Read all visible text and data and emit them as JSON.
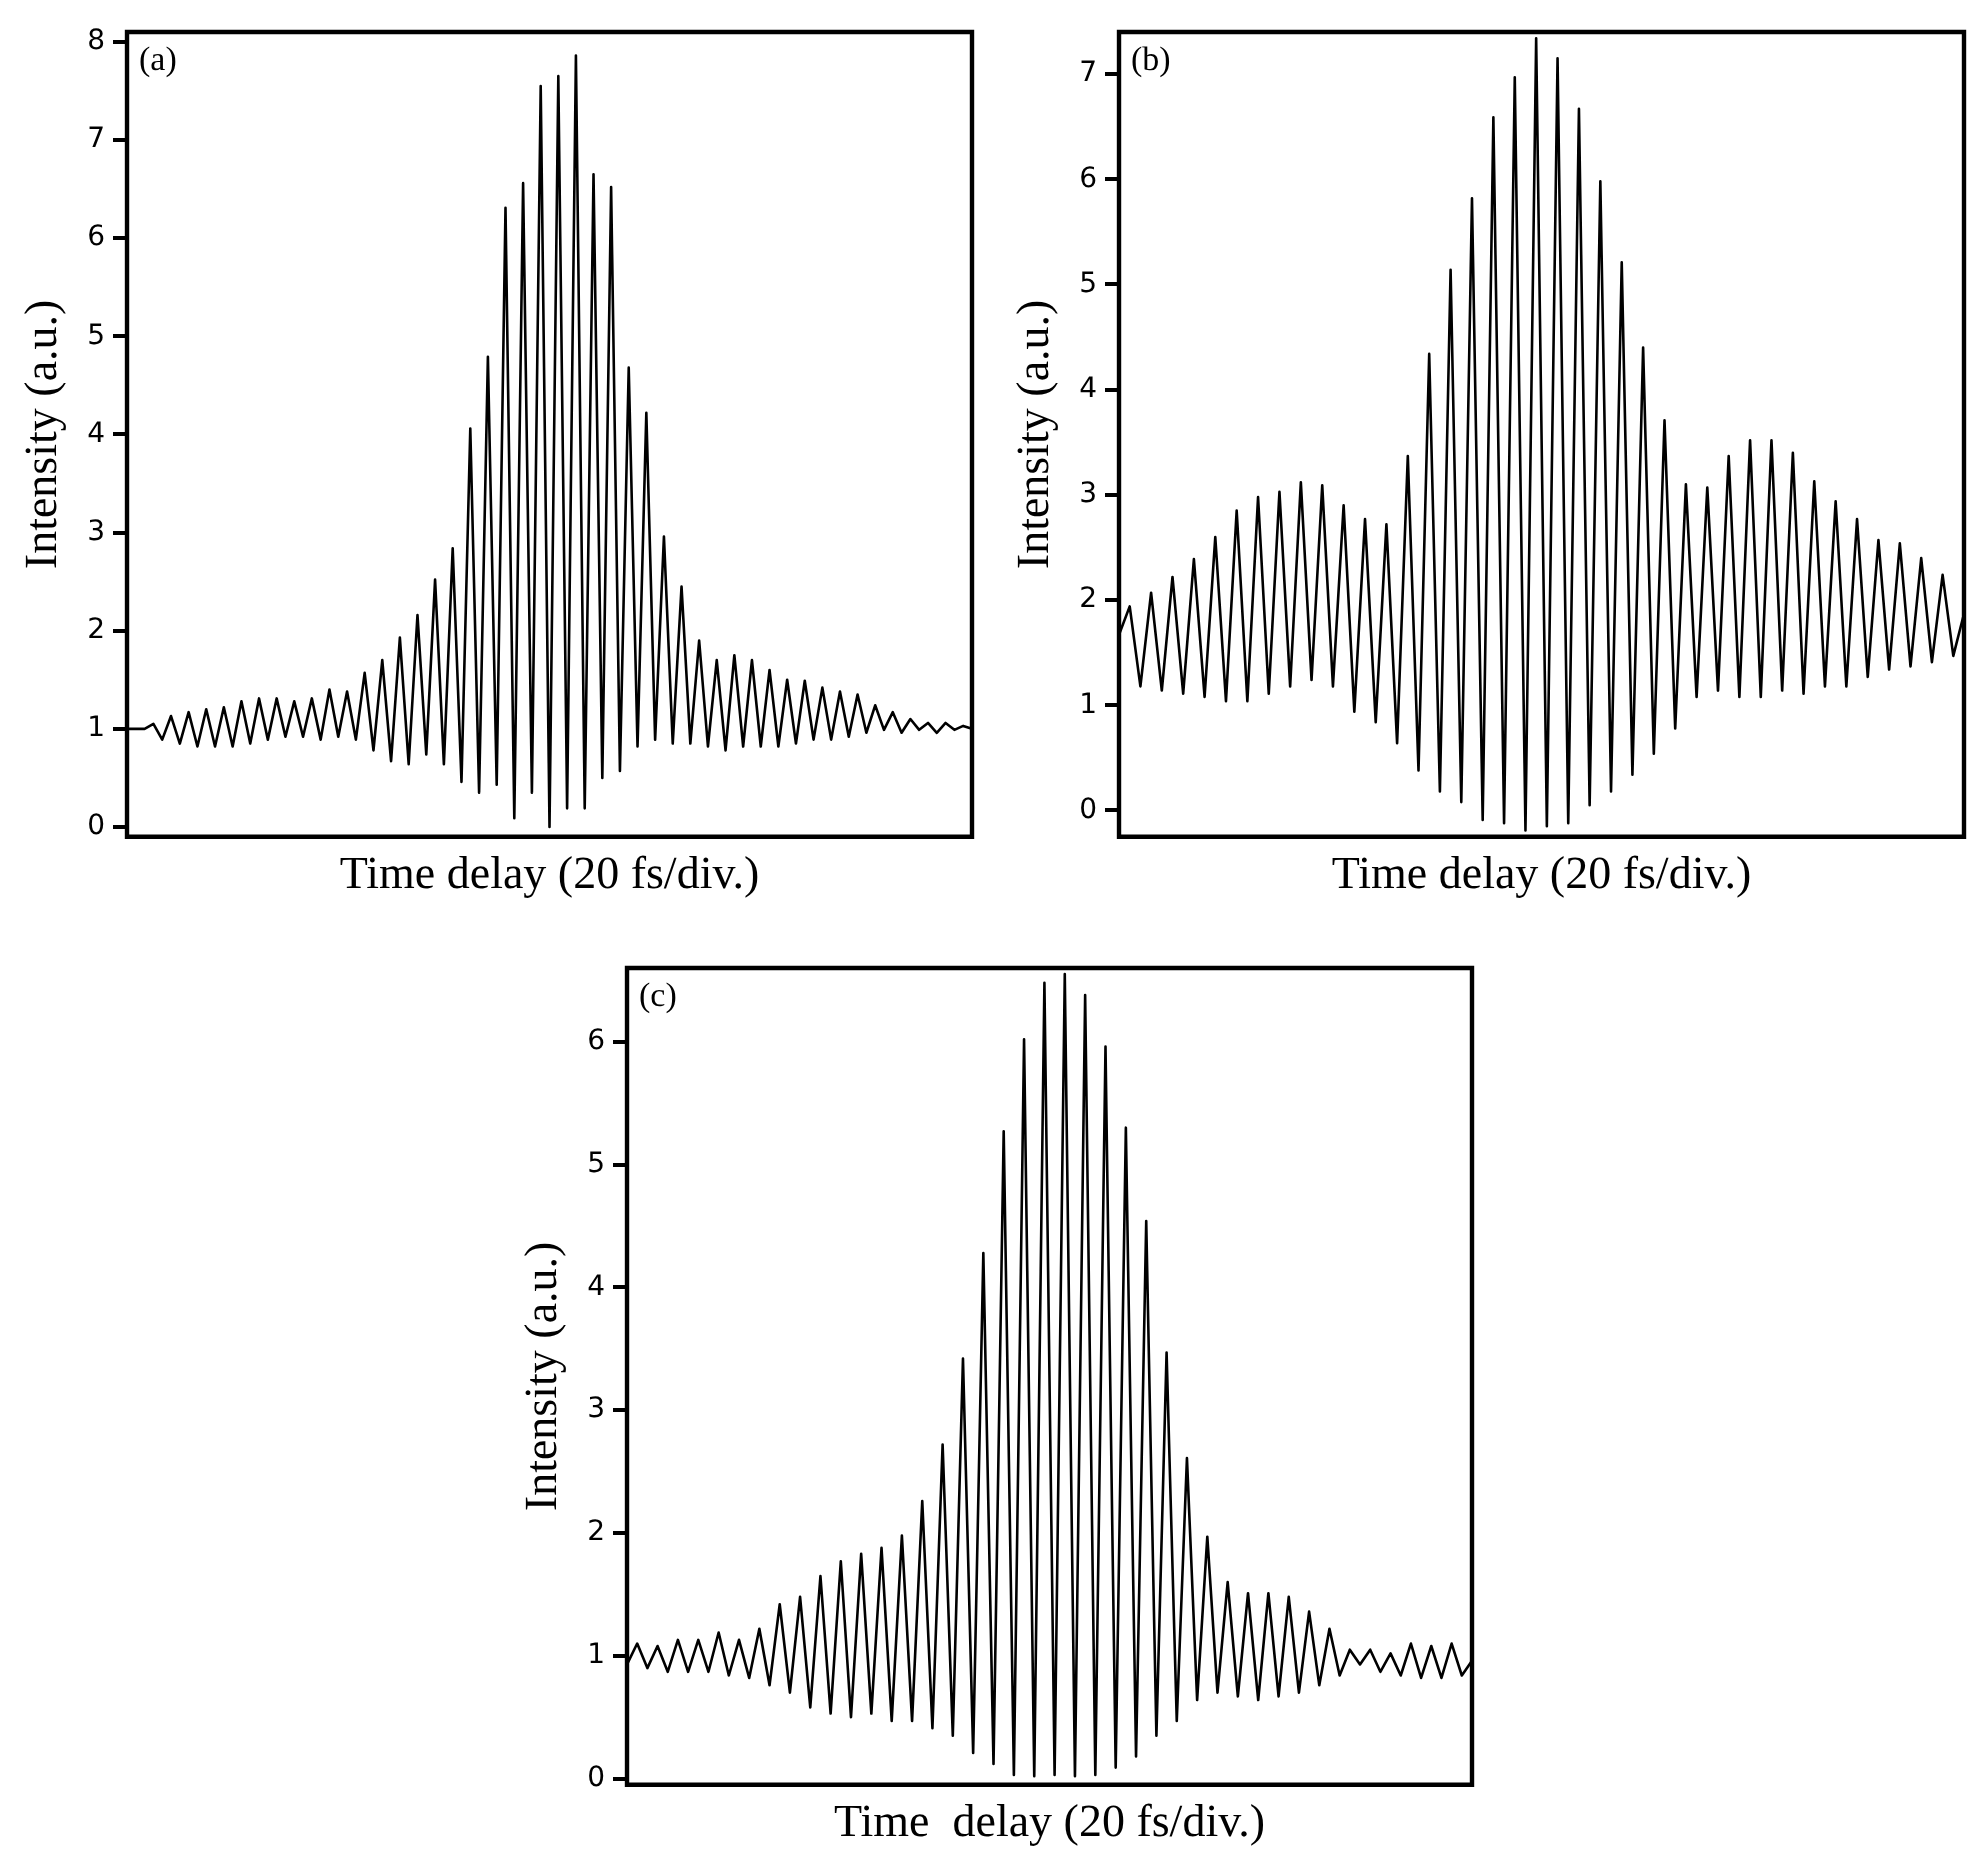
{
  "chart_data": [
    {
      "type": "line",
      "xlabel": "Time delay (20 fs/div.)",
      "ylabel": "Intensity (a.u.)",
      "annotations": [
        "(a)"
      ],
      "categories": [
        null,
        null,
        null,
        null,
        null,
        null,
        null,
        null,
        null,
        null,
        null,
        null,
        null,
        null,
        null,
        null,
        null,
        null,
        null,
        null,
        null,
        null,
        null,
        null,
        null,
        null,
        null,
        null,
        null,
        null,
        null,
        null,
        null,
        null,
        null,
        null,
        null,
        null,
        null,
        null,
        null,
        null,
        null,
        null,
        null,
        null,
        null,
        null,
        null,
        null,
        null,
        null,
        null,
        null,
        null,
        null,
        null,
        null,
        null,
        null,
        null,
        null,
        null,
        null,
        null,
        null,
        null,
        null,
        null,
        null,
        null,
        null,
        null,
        null,
        null,
        null,
        null,
        null,
        null,
        null,
        null,
        null,
        null,
        null,
        null,
        null,
        null,
        null,
        null,
        null,
        null,
        null,
        null,
        null,
        null,
        null,
        null
      ],
      "ylim": [
        -0.1,
        8.1
      ],
      "yticks": [
        0,
        1,
        2,
        3,
        4,
        5,
        6,
        7,
        8
      ],
      "tick_labels": "y",
      "grid": false,
      "legend": false,
      "marker": "none",
      "line_style": "solid",
      "series": [
        {
          "color": "#000000",
          "values": [
            1.0,
            1.0,
            1.0,
            1.05,
            0.89,
            1.13,
            0.85,
            1.17,
            0.82,
            1.2,
            0.82,
            1.22,
            0.82,
            1.28,
            0.85,
            1.31,
            0.89,
            1.31,
            0.92,
            1.28,
            0.92,
            1.31,
            0.89,
            1.4,
            0.92,
            1.38,
            0.89,
            1.57,
            0.78,
            1.7,
            0.67,
            1.93,
            0.64,
            2.16,
            0.74,
            2.52,
            0.64,
            2.84,
            0.46,
            4.06,
            0.35,
            4.79,
            0.43,
            6.31,
            0.09,
            6.56,
            0.35,
            7.55,
            0.0,
            7.65,
            0.19,
            7.86,
            0.19,
            6.65,
            0.5,
            6.52,
            0.57,
            4.68,
            0.82,
            4.22,
            0.89,
            2.96,
            0.85,
            2.45,
            0.85,
            1.9,
            0.82,
            1.7,
            0.78,
            1.75,
            0.82,
            1.7,
            0.82,
            1.6,
            0.82,
            1.5,
            0.85,
            1.49,
            0.89,
            1.42,
            0.89,
            1.38,
            0.92,
            1.35,
            0.96,
            1.24,
            0.99,
            1.17,
            0.96,
            1.1,
            0.99,
            1.06,
            0.96,
            1.06,
            0.99,
            1.03,
            1.0
          ]
        }
      ]
    },
    {
      "type": "line",
      "xlabel": "Time delay (20 fs/div.)",
      "ylabel": "Intensity (a.u.)",
      "annotations": [
        "(b)"
      ],
      "categories": [
        null,
        null,
        null,
        null,
        null,
        null,
        null,
        null,
        null,
        null,
        null,
        null,
        null,
        null,
        null,
        null,
        null,
        null,
        null,
        null,
        null,
        null,
        null,
        null,
        null,
        null,
        null,
        null,
        null,
        null,
        null,
        null,
        null,
        null,
        null,
        null,
        null,
        null,
        null,
        null,
        null,
        null,
        null,
        null,
        null,
        null,
        null,
        null,
        null,
        null,
        null,
        null,
        null,
        null,
        null,
        null,
        null,
        null,
        null,
        null,
        null,
        null,
        null,
        null,
        null,
        null,
        null,
        null,
        null,
        null,
        null,
        null,
        null,
        null,
        null,
        null,
        null,
        null,
        null,
        null
      ],
      "ylim": [
        -0.25,
        7.4
      ],
      "yticks": [
        0,
        1,
        2,
        3,
        4,
        5,
        6,
        7
      ],
      "tick_labels": "y",
      "grid": false,
      "legend": false,
      "marker": "none",
      "line_style": "solid",
      "series": [
        {
          "color": "#000000",
          "values": [
            1.67,
            1.94,
            1.18,
            2.07,
            1.14,
            2.22,
            1.11,
            2.39,
            1.08,
            2.6,
            1.04,
            2.85,
            1.04,
            2.98,
            1.11,
            3.03,
            1.18,
            3.12,
            1.24,
            3.09,
            1.18,
            2.9,
            0.94,
            2.77,
            0.84,
            2.72,
            0.64,
            3.37,
            0.38,
            4.34,
            0.18,
            5.14,
            0.08,
            5.82,
            -0.09,
            6.59,
            -0.12,
            6.97,
            -0.19,
            7.34,
            -0.15,
            7.15,
            -0.12,
            6.67,
            0.05,
            5.98,
            0.18,
            5.21,
            0.34,
            4.4,
            0.54,
            3.71,
            0.78,
            3.1,
            1.08,
            3.07,
            1.14,
            3.37,
            1.08,
            3.52,
            1.08,
            3.52,
            1.14,
            3.4,
            1.11,
            3.13,
            1.18,
            2.94,
            1.18,
            2.77,
            1.27,
            2.57,
            1.34,
            2.54,
            1.37,
            2.4,
            1.41,
            2.24,
            1.47,
            1.87
          ]
        }
      ]
    },
    {
      "type": "line",
      "xlabel": "Time  delay (20 fs/div.)",
      "ylabel": "Intensity (a.u.)",
      "annotations": [
        "(c)"
      ],
      "categories": [
        null,
        null,
        null,
        null,
        null,
        null,
        null,
        null,
        null,
        null,
        null,
        null,
        null,
        null,
        null,
        null,
        null,
        null,
        null,
        null,
        null,
        null,
        null,
        null,
        null,
        null,
        null,
        null,
        null,
        null,
        null,
        null,
        null,
        null,
        null,
        null,
        null,
        null,
        null,
        null,
        null,
        null,
        null,
        null,
        null,
        null,
        null,
        null,
        null,
        null,
        null,
        null,
        null,
        null,
        null,
        null,
        null,
        null,
        null,
        null,
        null,
        null,
        null,
        null,
        null,
        null,
        null,
        null,
        null,
        null,
        null,
        null,
        null,
        null,
        null,
        null,
        null,
        null,
        null,
        null,
        null,
        null,
        null,
        null
      ],
      "ylim": [
        -0.05,
        6.6
      ],
      "yticks": [
        0,
        1,
        2,
        3,
        4,
        5,
        6
      ],
      "tick_labels": "y",
      "grid": false,
      "legend": false,
      "marker": "none",
      "line_style": "solid",
      "series": [
        {
          "color": "#000000",
          "values": [
            0.93,
            1.1,
            0.9,
            1.08,
            0.87,
            1.13,
            0.87,
            1.13,
            0.87,
            1.19,
            0.84,
            1.13,
            0.82,
            1.22,
            0.76,
            1.42,
            0.7,
            1.48,
            0.58,
            1.65,
            0.53,
            1.77,
            0.5,
            1.83,
            0.53,
            1.88,
            0.47,
            1.98,
            0.47,
            2.26,
            0.41,
            2.72,
            0.35,
            3.42,
            0.21,
            4.28,
            0.12,
            5.27,
            0.03,
            6.02,
            0.02,
            6.48,
            0.03,
            6.55,
            0.02,
            6.38,
            0.03,
            5.96,
            0.09,
            5.3,
            0.18,
            4.54,
            0.35,
            3.47,
            0.47,
            2.61,
            0.64,
            1.97,
            0.7,
            1.6,
            0.67,
            1.51,
            0.64,
            1.51,
            0.67,
            1.48,
            0.7,
            1.36,
            0.76,
            1.22,
            0.84,
            1.05,
            0.93,
            1.05,
            0.87,
            1.02,
            0.84,
            1.1,
            0.82,
            1.08,
            0.82,
            1.1,
            0.84,
            0.96
          ]
        }
      ]
    }
  ]
}
